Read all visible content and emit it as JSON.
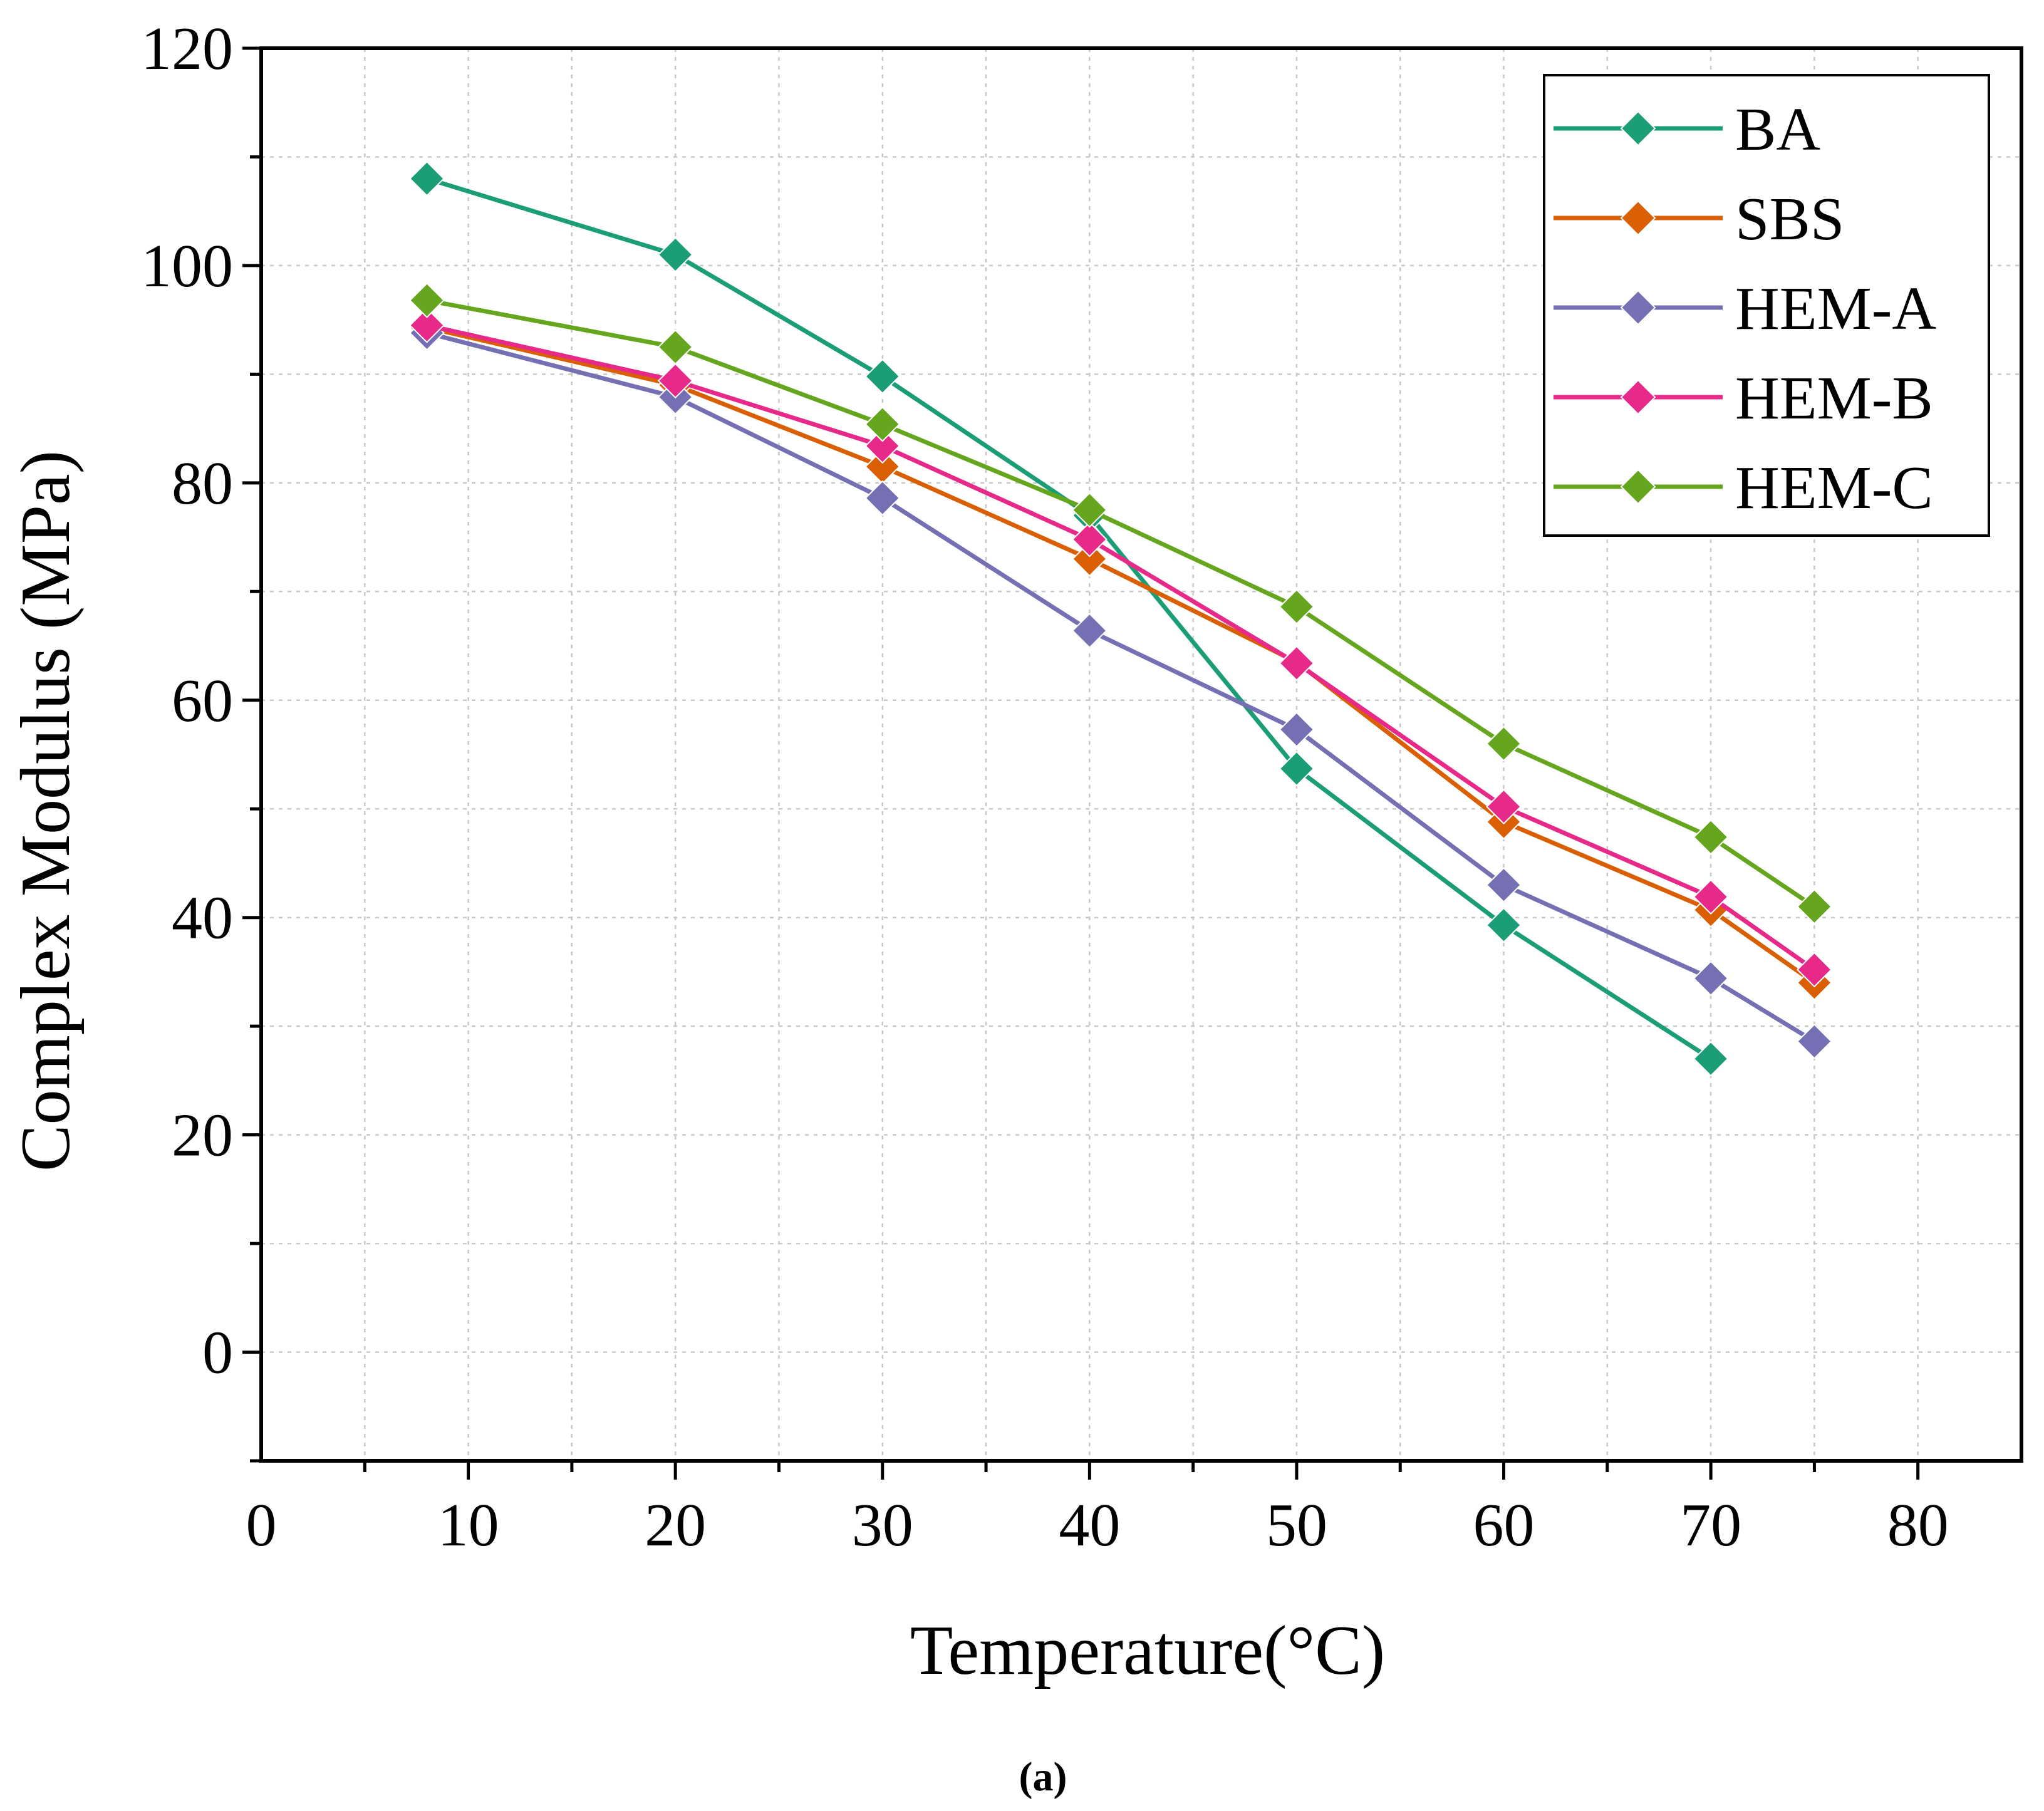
{
  "chart_data": {
    "type": "line",
    "title": "",
    "xlabel": "Temperature(°C)",
    "ylabel": "Complex Modulus (MPa)",
    "xlim": [
      0,
      85
    ],
    "ylim": [
      -10,
      120
    ],
    "xticks": [
      0,
      10,
      20,
      30,
      40,
      50,
      60,
      70,
      80
    ],
    "yticks": [
      0,
      20,
      40,
      60,
      80,
      100,
      120
    ],
    "grid": true,
    "legend_position": "top-right",
    "caption": "(a)",
    "series": [
      {
        "name": "BA",
        "color": "#1b9e77",
        "x": [
          8,
          20,
          30,
          40,
          50,
          60,
          70
        ],
        "y": [
          108.0,
          101.0,
          89.8,
          77.0,
          53.7,
          39.3,
          27.0
        ]
      },
      {
        "name": "SBS",
        "color": "#d95f02",
        "x": [
          8,
          20,
          30,
          40,
          50,
          60,
          70,
          75
        ],
        "y": [
          94.3,
          89.0,
          81.5,
          73.0,
          63.5,
          48.8,
          40.7,
          34.0
        ]
      },
      {
        "name": "HEM-A",
        "color": "#7570b3",
        "x": [
          8,
          20,
          30,
          40,
          50,
          60,
          70,
          75
        ],
        "y": [
          93.8,
          87.9,
          78.6,
          66.4,
          57.3,
          43.0,
          34.4,
          28.6
        ]
      },
      {
        "name": "HEM-B",
        "color": "#e7298a",
        "x": [
          8,
          20,
          30,
          40,
          50,
          60,
          70,
          75
        ],
        "y": [
          94.5,
          89.4,
          83.4,
          74.8,
          63.4,
          50.2,
          41.9,
          35.2
        ]
      },
      {
        "name": "HEM-C",
        "color": "#66a61e",
        "x": [
          8,
          20,
          30,
          40,
          50,
          60,
          70,
          75
        ],
        "y": [
          96.8,
          92.5,
          85.4,
          77.5,
          68.6,
          56.0,
          47.4,
          41.0
        ]
      }
    ]
  }
}
